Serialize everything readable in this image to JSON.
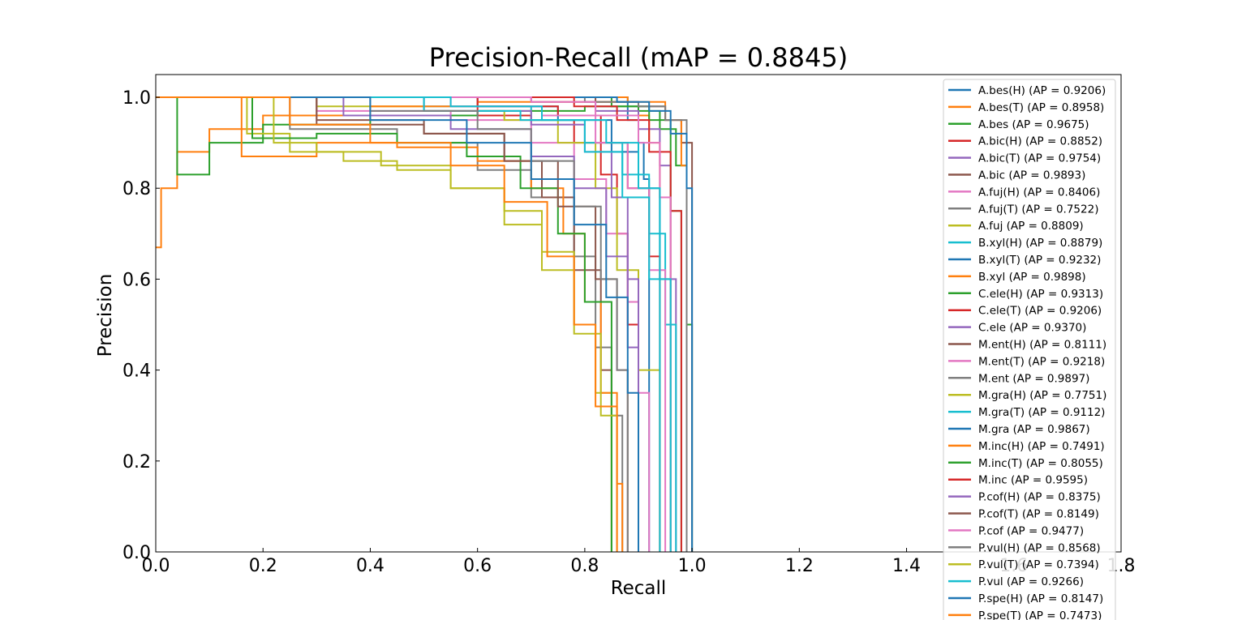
{
  "chart_data": {
    "type": "line",
    "title": "Precision-Recall (mAP = 0.8845)",
    "xlabel": "Recall",
    "ylabel": "Precision",
    "xlim": [
      0.0,
      1.8
    ],
    "ylim": [
      0.0,
      1.05
    ],
    "xticks": [
      "0.0",
      "0.2",
      "0.4",
      "0.6",
      "0.8",
      "1.0",
      "1.2",
      "1.4",
      "1.6",
      "1.8"
    ],
    "yticks": [
      "0.0",
      "0.2",
      "0.4",
      "0.6",
      "0.8",
      "1.0"
    ],
    "grid": false,
    "legend_position": "upper-right",
    "series": [
      {
        "label": "A.bes(H) (AP = 0.9206)",
        "color": "#1f77b4",
        "x": [
          0.0,
          0.86,
          0.88,
          0.9,
          0.91,
          0.92,
          0.92
        ],
        "y": [
          1.0,
          1.0,
          0.95,
          0.9,
          0.82,
          0.62,
          0.0
        ]
      },
      {
        "label": "A.bes(T) (AP = 0.8958)",
        "color": "#ff7f0e",
        "x": [
          0.0,
          0.88,
          0.9,
          0.92,
          0.94,
          0.96,
          0.96
        ],
        "y": [
          1.0,
          0.99,
          0.96,
          0.9,
          0.78,
          0.55,
          0.0
        ]
      },
      {
        "label": "A.bes (AP = 0.9675)",
        "color": "#2ca02c",
        "x": [
          0.0,
          0.85,
          0.9,
          0.94,
          0.97,
          0.99,
          1.0,
          1.0
        ],
        "y": [
          1.0,
          0.98,
          0.97,
          0.93,
          0.85,
          0.5,
          0.12,
          0.0
        ]
      },
      {
        "label": "A.bic(H) (AP = 0.8852)",
        "color": "#d62728",
        "x": [
          0.0,
          0.6,
          0.7,
          0.78,
          0.83,
          0.86,
          0.88,
          0.9,
          0.9
        ],
        "y": [
          1.0,
          0.96,
          0.95,
          0.9,
          0.83,
          0.7,
          0.5,
          0.2,
          0.0
        ]
      },
      {
        "label": "A.bic(T) (AP = 0.9754)",
        "color": "#9467bd",
        "x": [
          0.0,
          0.7,
          0.82,
          0.9,
          0.94,
          0.96,
          0.97,
          0.97
        ],
        "y": [
          1.0,
          0.99,
          0.97,
          0.93,
          0.85,
          0.6,
          0.25,
          0.0
        ]
      },
      {
        "label": "A.bic (AP = 0.9893)",
        "color": "#8c564b",
        "x": [
          0.0,
          0.82,
          0.9,
          0.95,
          0.98,
          1.0,
          1.0
        ],
        "y": [
          1.0,
          0.99,
          0.98,
          0.95,
          0.9,
          0.83,
          0.0
        ]
      },
      {
        "label": "A.fuj(H) (AP = 0.8406)",
        "color": "#e377c2",
        "x": [
          0.0,
          0.3,
          0.55,
          0.7,
          0.78,
          0.84,
          0.88,
          0.9,
          0.92,
          0.92
        ],
        "y": [
          1.0,
          0.97,
          0.95,
          0.9,
          0.82,
          0.7,
          0.55,
          0.35,
          0.15,
          0.0
        ]
      },
      {
        "label": "A.fuj(T) (AP = 0.7522)",
        "color": "#7f7f7f",
        "x": [
          0.0,
          0.25,
          0.45,
          0.6,
          0.7,
          0.78,
          0.82,
          0.85,
          0.87,
          0.87
        ],
        "y": [
          1.0,
          0.93,
          0.9,
          0.84,
          0.78,
          0.65,
          0.45,
          0.3,
          0.15,
          0.0
        ]
      },
      {
        "label": "A.fuj (AP = 0.8809)",
        "color": "#bcbd22",
        "x": [
          0.0,
          0.3,
          0.5,
          0.65,
          0.75,
          0.82,
          0.86,
          0.9,
          0.94,
          0.94
        ],
        "y": [
          1.0,
          0.98,
          0.97,
          0.95,
          0.9,
          0.8,
          0.62,
          0.4,
          0.15,
          0.0
        ]
      },
      {
        "label": "B.xyl(H) (AP = 0.8879)",
        "color": "#17becf",
        "x": [
          0.0,
          0.5,
          0.7,
          0.8,
          0.87,
          0.92,
          0.95,
          0.97,
          0.97
        ],
        "y": [
          1.0,
          0.98,
          0.95,
          0.9,
          0.83,
          0.7,
          0.5,
          0.2,
          0.0
        ]
      },
      {
        "label": "B.xyl(T) (AP = 0.9232)",
        "color": "#1f77b4",
        "x": [
          0.0,
          0.6,
          0.75,
          0.85,
          0.9,
          0.94,
          0.96,
          0.96
        ],
        "y": [
          1.0,
          0.98,
          0.95,
          0.88,
          0.8,
          0.6,
          0.3,
          0.0
        ]
      },
      {
        "label": "B.xyl (AP = 0.9898)",
        "color": "#ff7f0e",
        "x": [
          0.0,
          0.01,
          0.04,
          0.1,
          0.2,
          0.4,
          0.6,
          0.8,
          0.95,
          0.98,
          0.99,
          0.99
        ],
        "y": [
          0.67,
          0.8,
          0.88,
          0.93,
          0.96,
          0.98,
          0.99,
          0.99,
          0.95,
          0.85,
          0.7,
          0.0
        ]
      },
      {
        "label": "C.ele(H) (AP = 0.9313)",
        "color": "#2ca02c",
        "x": [
          0.0,
          0.04,
          0.04,
          0.1,
          0.2,
          0.4,
          0.6,
          0.8,
          0.92,
          0.96,
          0.98,
          0.98
        ],
        "y": [
          1.0,
          1.0,
          0.83,
          0.9,
          0.94,
          0.96,
          0.97,
          0.98,
          0.95,
          0.75,
          0.4,
          0.0
        ]
      },
      {
        "label": "C.ele(T) (AP = 0.9206)",
        "color": "#d62728",
        "x": [
          0.0,
          0.6,
          0.75,
          0.83,
          0.88,
          0.92,
          0.94,
          0.94
        ],
        "y": [
          1.0,
          0.98,
          0.96,
          0.9,
          0.8,
          0.65,
          0.4,
          0.0
        ]
      },
      {
        "label": "C.ele (AP = 0.9370)",
        "color": "#9467bd",
        "x": [
          0.0,
          0.5,
          0.7,
          0.8,
          0.85,
          0.88,
          0.9,
          0.9
        ],
        "y": [
          1.0,
          0.97,
          0.94,
          0.88,
          0.78,
          0.6,
          0.3,
          0.0
        ]
      },
      {
        "label": "M.ent(H) (AP = 0.8111)",
        "color": "#8c564b",
        "x": [
          0.0,
          0.3,
          0.5,
          0.65,
          0.72,
          0.78,
          0.83,
          0.85,
          0.85
        ],
        "y": [
          1.0,
          0.95,
          0.92,
          0.86,
          0.78,
          0.62,
          0.4,
          0.2,
          0.0
        ]
      },
      {
        "label": "M.ent(T) (AP = 0.9218)",
        "color": "#e377c2",
        "x": [
          0.0,
          0.55,
          0.72,
          0.82,
          0.88,
          0.92,
          0.95,
          0.95
        ],
        "y": [
          1.0,
          0.98,
          0.96,
          0.9,
          0.8,
          0.62,
          0.3,
          0.0
        ]
      },
      {
        "label": "M.ent (AP = 0.9897)",
        "color": "#7f7f7f",
        "x": [
          0.0,
          0.8,
          0.9,
          0.95,
          0.99,
          0.99
        ],
        "y": [
          1.0,
          0.99,
          0.98,
          0.95,
          0.92,
          0.0
        ]
      },
      {
        "label": "M.gra(H) (AP = 0.7751)",
        "color": "#bcbd22",
        "x": [
          0.0,
          0.17,
          0.25,
          0.35,
          0.45,
          0.55,
          0.65,
          0.72,
          0.78,
          0.82,
          0.85,
          0.85
        ],
        "y": [
          1.0,
          0.92,
          0.88,
          0.86,
          0.84,
          0.8,
          0.75,
          0.66,
          0.5,
          0.35,
          0.15,
          0.0
        ]
      },
      {
        "label": "M.gra(T) (AP = 0.9112)",
        "color": "#17becf",
        "x": [
          0.0,
          0.5,
          0.68,
          0.8,
          0.87,
          0.92,
          0.94,
          0.94
        ],
        "y": [
          1.0,
          0.97,
          0.95,
          0.88,
          0.78,
          0.6,
          0.35,
          0.0
        ]
      },
      {
        "label": "M.gra (AP = 0.9867)",
        "color": "#1f77b4",
        "x": [
          0.0,
          0.86,
          0.92,
          0.96,
          0.99,
          1.0,
          1.0
        ],
        "y": [
          1.0,
          0.99,
          0.97,
          0.92,
          0.8,
          0.44,
          0.0
        ]
      },
      {
        "label": "M.inc(H) (AP = 0.7491)",
        "color": "#ff7f0e",
        "x": [
          0.0,
          0.16,
          0.16,
          0.3,
          0.45,
          0.6,
          0.7,
          0.76,
          0.8,
          0.83,
          0.86,
          0.87
        ],
        "y": [
          1.0,
          1.0,
          0.87,
          0.9,
          0.89,
          0.86,
          0.8,
          0.7,
          0.55,
          0.35,
          0.15,
          0.0
        ]
      },
      {
        "label": "M.inc(T) (AP = 0.8055)",
        "color": "#2ca02c",
        "x": [
          0.0,
          0.18,
          0.3,
          0.45,
          0.58,
          0.68,
          0.75,
          0.8,
          0.85,
          0.85
        ],
        "y": [
          1.0,
          0.91,
          0.92,
          0.9,
          0.87,
          0.8,
          0.7,
          0.55,
          0.3,
          0.0
        ]
      },
      {
        "label": "M.inc (AP = 0.9595)",
        "color": "#d62728",
        "x": [
          0.0,
          0.78,
          0.86,
          0.92,
          0.96,
          0.98,
          0.98
        ],
        "y": [
          1.0,
          0.98,
          0.95,
          0.88,
          0.75,
          0.4,
          0.0
        ]
      },
      {
        "label": "P.cof(H) (AP = 0.8375)",
        "color": "#9467bd",
        "x": [
          0.0,
          0.35,
          0.55,
          0.7,
          0.78,
          0.84,
          0.88,
          0.9,
          0.9
        ],
        "y": [
          1.0,
          0.96,
          0.93,
          0.87,
          0.8,
          0.65,
          0.45,
          0.2,
          0.0
        ]
      },
      {
        "label": "P.cof(T) (AP = 0.8149)",
        "color": "#8c564b",
        "x": [
          0.0,
          0.3,
          0.5,
          0.65,
          0.75,
          0.82,
          0.86,
          0.88,
          0.88
        ],
        "y": [
          1.0,
          0.94,
          0.92,
          0.86,
          0.76,
          0.6,
          0.4,
          0.15,
          0.0
        ]
      },
      {
        "label": "P.cof (AP = 0.9477)",
        "color": "#e377c2",
        "x": [
          0.0,
          0.7,
          0.82,
          0.9,
          0.94,
          0.96,
          0.96
        ],
        "y": [
          1.0,
          0.99,
          0.96,
          0.9,
          0.78,
          0.55,
          0.0
        ]
      },
      {
        "label": "P.vul(H) (AP = 0.8568)",
        "color": "#7f7f7f",
        "x": [
          0.0,
          0.4,
          0.6,
          0.7,
          0.78,
          0.83,
          0.86,
          0.88,
          0.88
        ],
        "y": [
          1.0,
          0.97,
          0.93,
          0.86,
          0.76,
          0.6,
          0.4,
          0.15,
          0.0
        ]
      },
      {
        "label": "P.vul(T) (AP = 0.7394)",
        "color": "#bcbd22",
        "x": [
          0.0,
          0.22,
          0.3,
          0.42,
          0.55,
          0.65,
          0.72,
          0.78,
          0.83,
          0.86,
          0.86
        ],
        "y": [
          1.0,
          0.9,
          0.88,
          0.85,
          0.8,
          0.72,
          0.62,
          0.48,
          0.3,
          0.12,
          0.0
        ]
      },
      {
        "label": "P.vul (AP = 0.9266)",
        "color": "#17becf",
        "x": [
          0.0,
          0.55,
          0.72,
          0.84,
          0.9,
          0.94,
          0.96,
          0.96
        ],
        "y": [
          1.0,
          0.98,
          0.95,
          0.9,
          0.8,
          0.6,
          0.3,
          0.0
        ]
      },
      {
        "label": "P.spe(H) (AP = 0.8147)",
        "color": "#1f77b4",
        "x": [
          0.0,
          0.4,
          0.58,
          0.7,
          0.78,
          0.84,
          0.88,
          0.9,
          0.9
        ],
        "y": [
          1.0,
          0.95,
          0.9,
          0.82,
          0.72,
          0.56,
          0.35,
          0.12,
          0.0
        ]
      },
      {
        "label": "P.spe(T) (AP = 0.7473)",
        "color": "#ff7f0e",
        "x": [
          0.0,
          0.25,
          0.4,
          0.55,
          0.65,
          0.73,
          0.78,
          0.82,
          0.86,
          0.86
        ],
        "y": [
          1.0,
          0.94,
          0.9,
          0.85,
          0.77,
          0.65,
          0.5,
          0.32,
          0.12,
          0.0
        ]
      }
    ]
  }
}
